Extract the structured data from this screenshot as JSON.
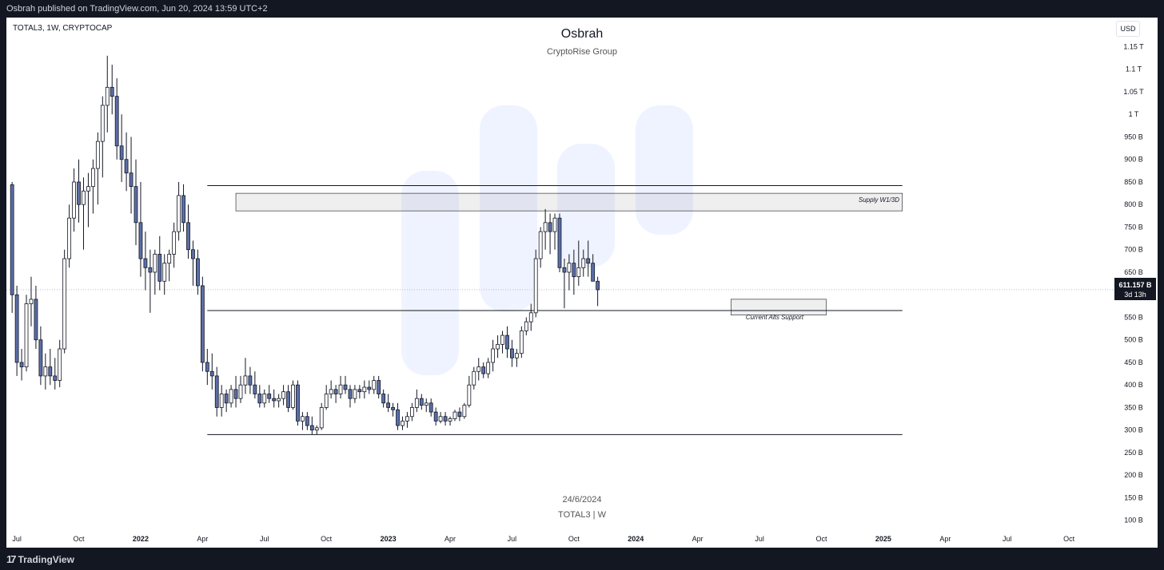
{
  "header": {
    "published": "Osbrah published on TradingView.com, Jun 20, 2024 13:59 UTC+2"
  },
  "chart": {
    "symbol_line": "TOTAL3, 1W, CRYPTOCAP",
    "author": "Osbrah",
    "group": "CryptoRise Group",
    "date_label": "24/6/2024",
    "symbol_footer": "TOTAL3 | W",
    "currency_button": "USD",
    "price_tag": "611.157 B",
    "countdown": "3d 13h",
    "zone_labels": {
      "supply": "Supply W1/3D",
      "support": "Current Alts Support"
    }
  },
  "footer": {
    "brand": "TradingView"
  },
  "chart_data": {
    "type": "candlestick",
    "interval": "1W",
    "unit": "USD",
    "ylim": [
      50,
      1200
    ],
    "y_ticks": [
      {
        "v": 1150,
        "label": "1.15 T"
      },
      {
        "v": 1100,
        "label": "1.1 T"
      },
      {
        "v": 1050,
        "label": "1.05 T"
      },
      {
        "v": 1000,
        "label": "1 T"
      },
      {
        "v": 950,
        "label": "950 B"
      },
      {
        "v": 900,
        "label": "900 B"
      },
      {
        "v": 850,
        "label": "850 B"
      },
      {
        "v": 800,
        "label": "800 B"
      },
      {
        "v": 750,
        "label": "750 B"
      },
      {
        "v": 700,
        "label": "700 B"
      },
      {
        "v": 650,
        "label": "650 B"
      },
      {
        "v": 550,
        "label": "550 B"
      },
      {
        "v": 500,
        "label": "500 B"
      },
      {
        "v": 450,
        "label": "450 B"
      },
      {
        "v": 400,
        "label": "400 B"
      },
      {
        "v": 350,
        "label": "350 B"
      },
      {
        "v": 300,
        "label": "300 B"
      },
      {
        "v": 250,
        "label": "250 B"
      },
      {
        "v": 200,
        "label": "200 B"
      },
      {
        "v": 150,
        "label": "150 B"
      },
      {
        "v": 100,
        "label": "100 B"
      }
    ],
    "x_ticks": [
      {
        "w": 1,
        "label": "Jul"
      },
      {
        "w": 14,
        "label": "Oct"
      },
      {
        "w": 27,
        "label": "2022",
        "bold": true
      },
      {
        "w": 40,
        "label": "Apr"
      },
      {
        "w": 53,
        "label": "Jul"
      },
      {
        "w": 66,
        "label": "Oct"
      },
      {
        "w": 79,
        "label": "2023",
        "bold": true
      },
      {
        "w": 92,
        "label": "Apr"
      },
      {
        "w": 105,
        "label": "Jul"
      },
      {
        "w": 118,
        "label": "Oct"
      },
      {
        "w": 131,
        "label": "2024",
        "bold": true
      },
      {
        "w": 144,
        "label": "Apr"
      },
      {
        "w": 157,
        "label": "Jul"
      },
      {
        "w": 170,
        "label": "Oct"
      },
      {
        "w": 183,
        "label": "2025",
        "bold": true
      },
      {
        "w": 196,
        "label": "Apr"
      },
      {
        "w": 209,
        "label": "Jul"
      },
      {
        "w": 222,
        "label": "Oct"
      }
    ],
    "levels": [
      {
        "name": "upper-line",
        "value": 842,
        "from_week": 41,
        "to_week": 187
      },
      {
        "name": "support-line",
        "value": 565,
        "from_week": 41,
        "to_week": 187
      },
      {
        "name": "bottom-line",
        "value": 290,
        "from_week": 41,
        "to_week": 187
      }
    ],
    "zones": [
      {
        "name": "supply-zone",
        "top": 825,
        "bottom": 786,
        "from_week": 47,
        "to_week": 187
      },
      {
        "name": "support-zone",
        "top": 590,
        "bottom": 555,
        "from_week": 151,
        "to_week": 171
      }
    ],
    "last_price": 611.157,
    "ohlc": [
      [
        844,
        850,
        560,
        600
      ],
      [
        600,
        620,
        420,
        450
      ],
      [
        450,
        480,
        410,
        440
      ],
      [
        440,
        600,
        430,
        580
      ],
      [
        580,
        640,
        530,
        590
      ],
      [
        590,
        620,
        480,
        500
      ],
      [
        500,
        530,
        400,
        420
      ],
      [
        420,
        470,
        390,
        440
      ],
      [
        440,
        480,
        400,
        420
      ],
      [
        420,
        460,
        390,
        410
      ],
      [
        410,
        500,
        395,
        480
      ],
      [
        480,
        700,
        470,
        680
      ],
      [
        680,
        800,
        660,
        770
      ],
      [
        770,
        880,
        740,
        850
      ],
      [
        850,
        900,
        760,
        800
      ],
      [
        800,
        860,
        700,
        830
      ],
      [
        830,
        870,
        750,
        840
      ],
      [
        840,
        900,
        780,
        880
      ],
      [
        880,
        960,
        800,
        940
      ],
      [
        940,
        1040,
        860,
        1020
      ],
      [
        1020,
        1130,
        960,
        1060
      ],
      [
        1060,
        1110,
        1000,
        1040
      ],
      [
        1040,
        1080,
        900,
        930
      ],
      [
        930,
        1000,
        850,
        900
      ],
      [
        900,
        960,
        830,
        870
      ],
      [
        870,
        950,
        780,
        840
      ],
      [
        840,
        900,
        710,
        760
      ],
      [
        760,
        850,
        640,
        680
      ],
      [
        680,
        740,
        610,
        660
      ],
      [
        660,
        700,
        560,
        650
      ],
      [
        650,
        700,
        600,
        690
      ],
      [
        690,
        730,
        610,
        630
      ],
      [
        630,
        690,
        600,
        670
      ],
      [
        670,
        700,
        630,
        690
      ],
      [
        690,
        760,
        660,
        740
      ],
      [
        740,
        850,
        720,
        820
      ],
      [
        820,
        845,
        740,
        760
      ],
      [
        760,
        800,
        680,
        700
      ],
      [
        700,
        720,
        620,
        680
      ],
      [
        680,
        700,
        600,
        620
      ],
      [
        620,
        640,
        430,
        450
      ],
      [
        450,
        480,
        400,
        430
      ],
      [
        430,
        470,
        390,
        420
      ],
      [
        420,
        440,
        330,
        350
      ],
      [
        350,
        400,
        330,
        380
      ],
      [
        380,
        390,
        340,
        360
      ],
      [
        360,
        400,
        350,
        390
      ],
      [
        390,
        420,
        350,
        370
      ],
      [
        370,
        420,
        360,
        400
      ],
      [
        400,
        460,
        380,
        420
      ],
      [
        420,
        440,
        380,
        400
      ],
      [
        400,
        430,
        370,
        380
      ],
      [
        380,
        400,
        350,
        360
      ],
      [
        360,
        390,
        350,
        380
      ],
      [
        380,
        400,
        360,
        370
      ],
      [
        370,
        390,
        350,
        365
      ],
      [
        365,
        380,
        350,
        370
      ],
      [
        370,
        400,
        355,
        385
      ],
      [
        385,
        400,
        340,
        350
      ],
      [
        350,
        410,
        345,
        400
      ],
      [
        400,
        410,
        310,
        320
      ],
      [
        320,
        340,
        300,
        330
      ],
      [
        330,
        340,
        300,
        310
      ],
      [
        310,
        330,
        290,
        300
      ],
      [
        300,
        310,
        290,
        305
      ],
      [
        305,
        360,
        300,
        350
      ],
      [
        350,
        400,
        345,
        380
      ],
      [
        380,
        410,
        370,
        390
      ],
      [
        390,
        400,
        360,
        380
      ],
      [
        380,
        420,
        370,
        400
      ],
      [
        400,
        420,
        380,
        390
      ],
      [
        390,
        400,
        350,
        370
      ],
      [
        370,
        400,
        360,
        390
      ],
      [
        390,
        400,
        370,
        385
      ],
      [
        385,
        410,
        370,
        395
      ],
      [
        395,
        410,
        380,
        390
      ],
      [
        390,
        420,
        380,
        410
      ],
      [
        410,
        420,
        370,
        380
      ],
      [
        380,
        390,
        350,
        360
      ],
      [
        360,
        380,
        340,
        350
      ],
      [
        350,
        360,
        330,
        345
      ],
      [
        345,
        360,
        300,
        310
      ],
      [
        310,
        330,
        300,
        320
      ],
      [
        320,
        340,
        305,
        330
      ],
      [
        330,
        360,
        320,
        350
      ],
      [
        350,
        390,
        340,
        370
      ],
      [
        370,
        380,
        345,
        355
      ],
      [
        355,
        370,
        340,
        360
      ],
      [
        360,
        370,
        330,
        340
      ],
      [
        340,
        350,
        310,
        320
      ],
      [
        320,
        340,
        315,
        330
      ],
      [
        330,
        340,
        310,
        320
      ],
      [
        320,
        330,
        310,
        325
      ],
      [
        325,
        345,
        320,
        340
      ],
      [
        340,
        350,
        320,
        330
      ],
      [
        330,
        360,
        325,
        355
      ],
      [
        355,
        420,
        350,
        400
      ],
      [
        400,
        440,
        390,
        430
      ],
      [
        430,
        460,
        410,
        440
      ],
      [
        440,
        450,
        415,
        425
      ],
      [
        425,
        460,
        415,
        450
      ],
      [
        450,
        500,
        430,
        480
      ],
      [
        480,
        510,
        460,
        490
      ],
      [
        490,
        520,
        470,
        510
      ],
      [
        510,
        530,
        460,
        480
      ],
      [
        480,
        500,
        440,
        460
      ],
      [
        460,
        480,
        440,
        470
      ],
      [
        470,
        530,
        460,
        520
      ],
      [
        520,
        550,
        510,
        540
      ],
      [
        540,
        580,
        520,
        560
      ],
      [
        560,
        700,
        550,
        680
      ],
      [
        680,
        750,
        660,
        740
      ],
      [
        740,
        790,
        700,
        760
      ],
      [
        760,
        780,
        690,
        740
      ],
      [
        740,
        780,
        700,
        770
      ],
      [
        770,
        780,
        650,
        660
      ],
      [
        660,
        680,
        570,
        650
      ],
      [
        650,
        690,
        610,
        670
      ],
      [
        670,
        700,
        600,
        640
      ],
      [
        640,
        720,
        620,
        660
      ],
      [
        660,
        700,
        640,
        680
      ],
      [
        680,
        720,
        640,
        670
      ],
      [
        670,
        690,
        630,
        630
      ],
      [
        630,
        640,
        575,
        611.157
      ]
    ]
  }
}
